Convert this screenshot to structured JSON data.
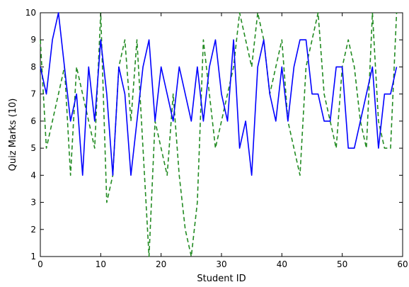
{
  "chart_data": {
    "type": "line",
    "xlabel": "Student ID",
    "ylabel": "Quiz Marks (10)",
    "xlim": [
      0,
      60
    ],
    "ylim": [
      1,
      10
    ],
    "xticks": [
      0,
      10,
      20,
      30,
      40,
      50,
      60
    ],
    "yticks": [
      1,
      2,
      3,
      4,
      5,
      6,
      7,
      8,
      9,
      10
    ],
    "grid": false,
    "x": [
      0,
      1,
      2,
      3,
      4,
      5,
      6,
      7,
      8,
      9,
      10,
      11,
      12,
      13,
      14,
      15,
      16,
      17,
      18,
      19,
      20,
      21,
      22,
      23,
      24,
      25,
      26,
      27,
      28,
      29,
      30,
      31,
      32,
      33,
      34,
      35,
      36,
      37,
      38,
      39,
      40,
      41,
      42,
      43,
      44,
      45,
      46,
      47,
      48,
      49,
      50,
      51,
      52,
      53,
      54,
      55,
      56,
      57,
      58,
      59
    ],
    "series": [
      {
        "style": "solid",
        "color": "#0000ff",
        "values": [
          8,
          7,
          9,
          10,
          8,
          6,
          7,
          4,
          8,
          6,
          9,
          7,
          4,
          8,
          7,
          4,
          6,
          8,
          9,
          6,
          8,
          7,
          6,
          8,
          7,
          6,
          8,
          6,
          8,
          9,
          7,
          6,
          9,
          5,
          6,
          4,
          8,
          9,
          7,
          6,
          8,
          6,
          8,
          9,
          9,
          7,
          7,
          6,
          6,
          8,
          8,
          5,
          5,
          6,
          7,
          8,
          5,
          7,
          7,
          8
        ]
      },
      {
        "style": "dashed",
        "color": "#228b22",
        "values": [
          9,
          5,
          6,
          7,
          8,
          4,
          8,
          7,
          6,
          5,
          10,
          3,
          4,
          8,
          9,
          6,
          9,
          5,
          1,
          6,
          5,
          4,
          7,
          4,
          2,
          1,
          3,
          9,
          7,
          5,
          6,
          7,
          8,
          10,
          9,
          8,
          10,
          9,
          7,
          8,
          9,
          6,
          5,
          4,
          8,
          9,
          10,
          7,
          6,
          5,
          8,
          9,
          8,
          6,
          5,
          10,
          6,
          5,
          5,
          10
        ]
      }
    ]
  }
}
